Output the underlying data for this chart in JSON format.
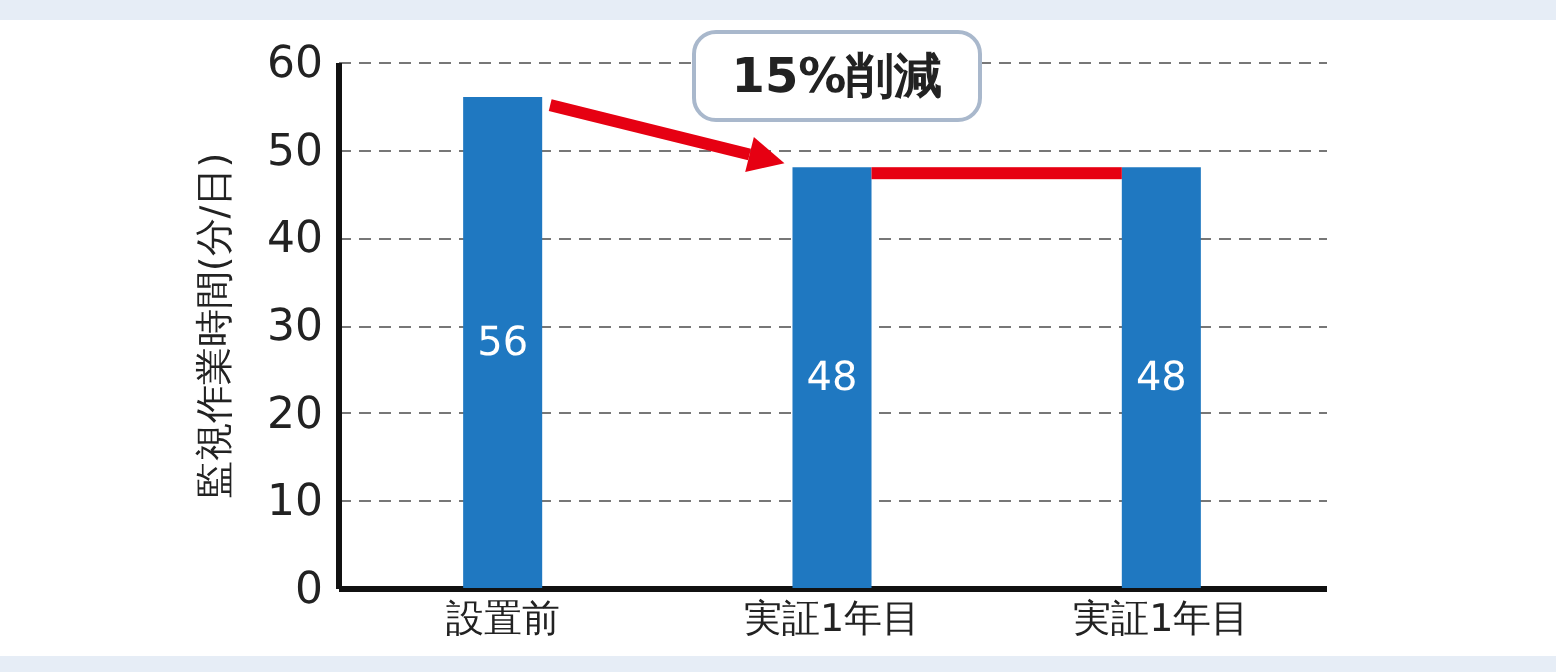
{
  "chart_data": {
    "type": "bar",
    "ylabel": "監視作業時間(分/日)",
    "categories": [
      "設置前",
      "実証1年目",
      "実証1年目"
    ],
    "values": [
      56,
      48,
      48
    ],
    "color": "#1f78c1",
    "data_labels": true,
    "ylim": [
      0,
      60
    ],
    "yticks": [
      0,
      10,
      20,
      30,
      40,
      50,
      60
    ],
    "grid": "y",
    "annotations": [
      {
        "text": "15%削減",
        "x": "実証1年目",
        "y": 48
      }
    ]
  }
}
